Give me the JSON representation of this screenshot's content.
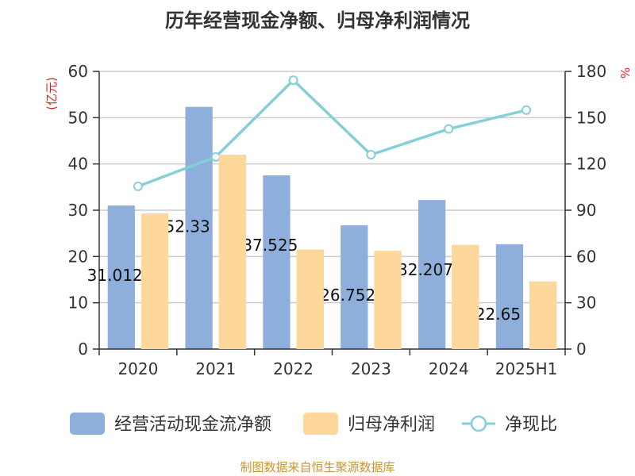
{
  "chart_data": {
    "type": "bar",
    "title": "历年经营现金净额、归母净利润情况",
    "categories": [
      "2020",
      "2021",
      "2022",
      "2023",
      "2024",
      "2025H1"
    ],
    "series": [
      {
        "name": "经营活动现金流净额",
        "kind": "bar",
        "axis": "left",
        "color": "#8eaedc",
        "values": [
          31.01,
          52.33,
          37.53,
          26.75,
          32.21,
          22.65
        ],
        "labels": [
          "31.012",
          "52.33",
          "37.525",
          "26.752",
          "32.207",
          "22.65"
        ]
      },
      {
        "name": "归母净利润",
        "kind": "bar",
        "axis": "left",
        "color": "#fdd89a",
        "values": [
          29.3,
          42.0,
          21.5,
          21.2,
          22.5,
          14.6
        ]
      },
      {
        "name": "净现比",
        "kind": "line",
        "axis": "right",
        "color": "#86cfd6",
        "values": [
          105.5,
          124.6,
          174.3,
          126.0,
          142.7,
          154.9
        ]
      }
    ],
    "left_axis": {
      "label": "(亿元)",
      "min": 0,
      "max": 60,
      "ticks": [
        "0",
        "10",
        "20",
        "30",
        "40",
        "50",
        "60"
      ]
    },
    "right_axis": {
      "label": "%",
      "min": 0,
      "max": 180,
      "ticks": [
        "0",
        "30",
        "60",
        "90",
        "120",
        "150",
        "180"
      ]
    },
    "grid": true,
    "legend_position": "bottom"
  },
  "footer": "制图数据来自恒生聚源数据库"
}
